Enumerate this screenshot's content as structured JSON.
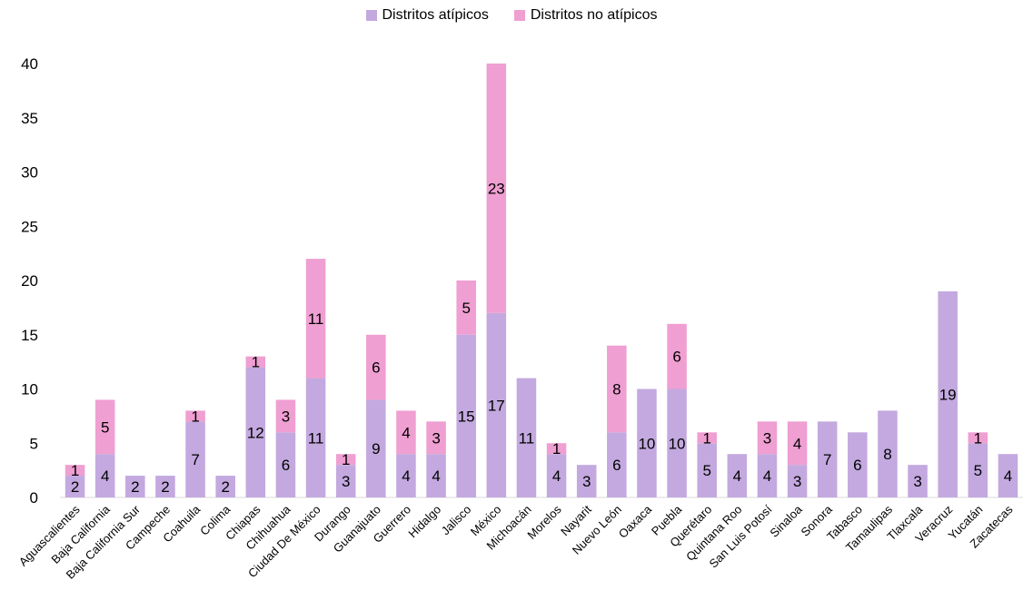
{
  "chart_data": {
    "type": "bar",
    "stacked": true,
    "categories": [
      "Aguascalientes",
      "Baja California",
      "Baja California Sur",
      "Campeche",
      "Coahuila",
      "Colima",
      "Chiapas",
      "Chihuahua",
      "Ciudad De México",
      "Durango",
      "Guanajuato",
      "Guerrero",
      "Hidalgo",
      "Jalisco",
      "México",
      "Michoacán",
      "Morelos",
      "Nayarit",
      "Nuevo León",
      "Oaxaca",
      "Puebla",
      "Querétaro",
      "Quintana Roo",
      "San Luis Potosí",
      "Sinaloa",
      "Sonora",
      "Tabasco",
      "Tamaulipas",
      "Tlaxcala",
      "Veracruz",
      "Yucatán",
      "Zacatecas"
    ],
    "series": [
      {
        "name": "Distritos atípicos",
        "color": "#c3a9df",
        "values": [
          2,
          4,
          2,
          2,
          7,
          2,
          12,
          6,
          11,
          3,
          9,
          4,
          4,
          15,
          17,
          11,
          4,
          3,
          6,
          10,
          10,
          5,
          4,
          4,
          3,
          7,
          6,
          8,
          3,
          19,
          5,
          4
        ]
      },
      {
        "name": "Distritos no atípicos",
        "color": "#ef9fd1",
        "values": [
          1,
          5,
          0,
          0,
          1,
          0,
          1,
          3,
          11,
          1,
          6,
          4,
          3,
          5,
          23,
          0,
          1,
          0,
          8,
          0,
          6,
          1,
          0,
          3,
          4,
          0,
          0,
          0,
          0,
          0,
          1,
          0
        ]
      }
    ],
    "ylim": [
      0,
      40
    ],
    "yticks": [
      0,
      5,
      10,
      15,
      20,
      25,
      30,
      35,
      40
    ],
    "legend_position": "top",
    "grid": false,
    "title": "",
    "xlabel": "",
    "ylabel": ""
  }
}
